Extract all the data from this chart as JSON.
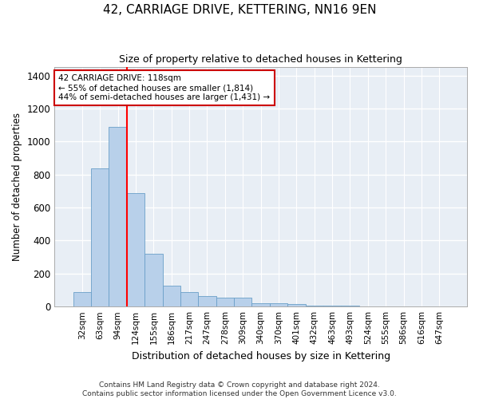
{
  "title": "42, CARRIAGE DRIVE, KETTERING, NN16 9EN",
  "subtitle": "Size of property relative to detached houses in Kettering",
  "xlabel": "Distribution of detached houses by size in Kettering",
  "ylabel": "Number of detached properties",
  "categories": [
    "32sqm",
    "63sqm",
    "94sqm",
    "124sqm",
    "155sqm",
    "186sqm",
    "217sqm",
    "247sqm",
    "278sqm",
    "309sqm",
    "340sqm",
    "370sqm",
    "401sqm",
    "432sqm",
    "463sqm",
    "493sqm",
    "524sqm",
    "555sqm",
    "586sqm",
    "616sqm",
    "647sqm"
  ],
  "values": [
    90,
    840,
    1090,
    690,
    320,
    125,
    90,
    65,
    55,
    55,
    20,
    20,
    15,
    5,
    5,
    4,
    3,
    3,
    2,
    2,
    2
  ],
  "bar_color": "#b8d0ea",
  "bar_edge_color": "#6a9fc8",
  "background_color": "#e8eef5",
  "grid_color": "#ffffff",
  "annotation_line1": "42 CARRIAGE DRIVE: 118sqm",
  "annotation_line2": "← 55% of detached houses are smaller (1,814)",
  "annotation_line3": "44% of semi-detached houses are larger (1,431) →",
  "annotation_box_color": "#cc0000",
  "ylim": [
    0,
    1450
  ],
  "yticks": [
    0,
    200,
    400,
    600,
    800,
    1000,
    1200,
    1400
  ],
  "footer_line1": "Contains HM Land Registry data © Crown copyright and database right 2024.",
  "footer_line2": "Contains public sector information licensed under the Open Government Licence v3.0."
}
